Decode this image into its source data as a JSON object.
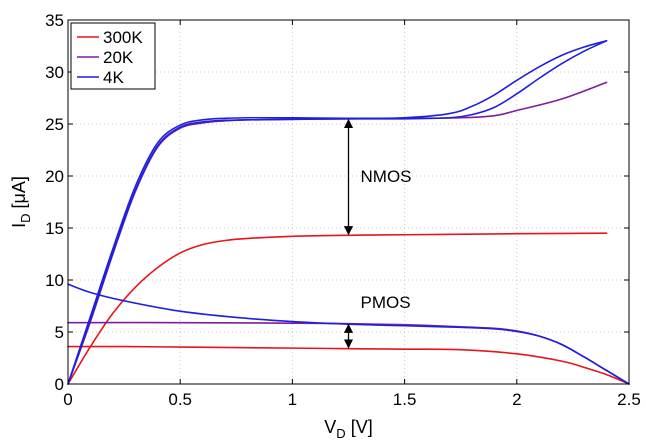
{
  "chart_data": {
    "type": "line",
    "xlabel": {
      "main": "V",
      "sub": "D",
      "unit": " [V]"
    },
    "ylabel": {
      "main": "I",
      "sub": "D",
      "unit": " [μA]"
    },
    "xlim": [
      0,
      2.5
    ],
    "ylim": [
      0,
      35
    ],
    "xticks": [
      0,
      0.5,
      1,
      1.5,
      2,
      2.5
    ],
    "xtick_labels": [
      "0",
      "0.5",
      "1",
      "1.5",
      "2",
      "2.5"
    ],
    "yticks": [
      0,
      5,
      10,
      15,
      20,
      25,
      30,
      35
    ],
    "ytick_labels": [
      "0",
      "5",
      "10",
      "15",
      "20",
      "25",
      "30",
      "35"
    ],
    "grid": true,
    "legend_position": "top-left",
    "legend": [
      {
        "label": "300K",
        "color": "#e8141b"
      },
      {
        "label": "20K",
        "color": "#7e1e9c"
      },
      {
        "label": "4K",
        "color": "#1f1fe0"
      }
    ],
    "annotations": [
      {
        "text": "NMOS",
        "x": 1.25,
        "y_from": 14.3,
        "y_to": 25.5
      },
      {
        "text": "PMOS",
        "x": 1.25,
        "y_from": 3.4,
        "y_to": 5.8
      }
    ],
    "series": [
      {
        "legend_index": 0,
        "color": "#e8141b",
        "x": [
          0,
          0.1,
          0.2,
          0.3,
          0.4,
          0.5,
          0.6,
          0.7,
          0.8,
          1.0,
          1.25,
          1.5,
          2.0,
          2.4
        ],
        "y": [
          0,
          3.6,
          6.8,
          9.3,
          11.2,
          12.6,
          13.4,
          13.8,
          14.0,
          14.2,
          14.3,
          14.35,
          14.45,
          14.5
        ]
      },
      {
        "legend_index": 0,
        "color": "#e8141b",
        "x": [
          0,
          0.25,
          0.5,
          0.75,
          1.0,
          1.25,
          1.5,
          1.75,
          2.0,
          2.2,
          2.3,
          2.4,
          2.5
        ],
        "y": [
          3.6,
          3.6,
          3.55,
          3.5,
          3.45,
          3.4,
          3.35,
          3.3,
          2.9,
          2.2,
          1.6,
          0.9,
          0.0
        ]
      },
      {
        "legend_index": 1,
        "color": "#7e1e9c",
        "x": [
          0,
          0.1,
          0.2,
          0.3,
          0.4,
          0.5,
          0.6,
          0.7,
          0.8,
          1.0,
          1.25,
          1.5,
          1.75,
          1.9,
          2.0,
          2.2,
          2.4
        ],
        "y": [
          0,
          6.0,
          12.5,
          18.5,
          22.8,
          24.6,
          25.1,
          25.3,
          25.4,
          25.45,
          25.5,
          25.55,
          25.6,
          25.8,
          26.3,
          27.4,
          29.0
        ]
      },
      {
        "legend_index": 1,
        "color": "#7e1e9c",
        "x": [
          0,
          0.5,
          1.0,
          1.25,
          1.5,
          1.75,
          1.9,
          2.0,
          2.1,
          2.2,
          2.3,
          2.4,
          2.5
        ],
        "y": [
          5.9,
          5.9,
          5.85,
          5.8,
          5.7,
          5.5,
          5.35,
          5.1,
          4.6,
          3.8,
          2.6,
          1.3,
          0.0
        ]
      },
      {
        "legend_index": 2,
        "color": "#1f1fe0",
        "x": [
          0,
          0.1,
          0.2,
          0.3,
          0.4,
          0.5,
          0.6,
          0.7,
          0.8,
          1.0,
          1.25,
          1.5,
          1.7,
          1.8,
          1.9,
          2.0,
          2.1,
          2.2,
          2.3,
          2.4
        ],
        "y": [
          0,
          6.5,
          13.0,
          19.0,
          23.2,
          24.9,
          25.4,
          25.55,
          25.6,
          25.6,
          25.55,
          25.6,
          26.0,
          26.7,
          27.8,
          29.2,
          30.5,
          31.6,
          32.4,
          33.0
        ]
      },
      {
        "legend_index": 2,
        "color": "#1f1fe0",
        "x": [
          0,
          0.1,
          0.2,
          0.3,
          0.4,
          0.5,
          0.6,
          0.7,
          0.8,
          1.0,
          1.25,
          1.5,
          1.7,
          1.8,
          1.9,
          2.0,
          2.1,
          2.2,
          2.3,
          2.4
        ],
        "y": [
          0,
          6.2,
          12.6,
          18.6,
          22.9,
          24.7,
          25.2,
          25.35,
          25.4,
          25.45,
          25.5,
          25.5,
          25.6,
          25.9,
          26.6,
          27.9,
          29.4,
          30.8,
          32.0,
          33.0
        ]
      },
      {
        "legend_index": 2,
        "color": "#1f1fe0",
        "x": [
          0,
          0.1,
          0.25,
          0.5,
          0.75,
          1.0,
          1.25,
          1.5,
          1.75,
          1.9,
          2.0,
          2.1,
          2.2,
          2.3,
          2.4,
          2.5
        ],
        "y": [
          9.6,
          8.8,
          8.0,
          7.0,
          6.4,
          6.0,
          5.75,
          5.6,
          5.45,
          5.3,
          5.05,
          4.6,
          3.8,
          2.6,
          1.3,
          0.0
        ]
      }
    ]
  }
}
